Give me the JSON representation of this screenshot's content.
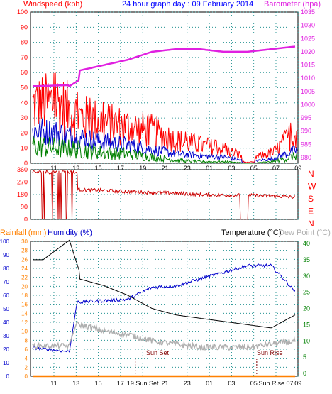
{
  "title": "24 hour graph day : 09 February 2014",
  "wind_panel": {
    "left_label": "Windspeed (kph)",
    "right_label": "Barometer (hpa)",
    "left_ticks": [
      "0",
      "10",
      "20",
      "30",
      "40",
      "50",
      "60",
      "70",
      "80",
      "90",
      "100"
    ],
    "right_ticks": [
      "980",
      "985",
      "990",
      "995",
      "1000",
      "1005",
      "1010",
      "1015",
      "1020",
      "1025",
      "1030",
      "1035"
    ]
  },
  "direction_panel": {
    "left_ticks": [
      "0",
      "90",
      "180",
      "270",
      "360"
    ],
    "compass": [
      "N",
      "W",
      "S",
      "E",
      "N"
    ]
  },
  "lower_panel": {
    "rain_label": "Rainfall (mm)",
    "hum_label": "Humidity (%)",
    "temp_label": "Temperature (°C)",
    "dew_label": "Dew Point (°C)",
    "hum_ticks": [
      "0",
      "10",
      "20",
      "30",
      "40",
      "50",
      "60",
      "70",
      "80",
      "90",
      "100"
    ],
    "rain_ticks": [
      "0",
      "2",
      "4",
      "6",
      "8",
      "10",
      "12",
      "14",
      "16",
      "18",
      "20",
      "22",
      "24",
      "26",
      "28",
      "30"
    ],
    "temp_ticks": [
      "0",
      "5",
      "10",
      "15",
      "20",
      "25",
      "30",
      "35",
      "40"
    ],
    "sunset_label": "Sun Set",
    "sunrise_label": "Sun Rise"
  },
  "hours": [
    "11",
    "13",
    "15",
    "17",
    "19",
    "21",
    "23",
    "01",
    "03",
    "05",
    "07",
    "09"
  ],
  "hours_lower": [
    "11",
    "13",
    "15",
    "17",
    "19 Sun Set",
    "21",
    "23",
    "01",
    "03",
    "05",
    "Sun Rise 07",
    "09"
  ],
  "colors": {
    "gust": "#ff0000",
    "avg": "#0000cc",
    "low": "#008000",
    "barometer": "#e020e0",
    "direction": "#cc0000",
    "humidity": "#0000cc",
    "temperature": "#000000",
    "dewpoint": "#b0b0b0",
    "rainfall": "#ff8000",
    "axis_red": "#ff0000",
    "axis_teal": "#008080",
    "axis_title": "#0000ff"
  },
  "chart_data": [
    {
      "type": "line",
      "title": "24 hour graph day : 09 February 2014",
      "x": [
        "11",
        "13",
        "15",
        "17",
        "19",
        "21",
        "23",
        "01",
        "03",
        "05",
        "07",
        "09"
      ],
      "ylabel": "Windspeed (kph)",
      "y2label": "Barometer (hpa)",
      "ylim": [
        0,
        100
      ],
      "y2lim": [
        980,
        1035
      ],
      "series": [
        {
          "name": "gust",
          "axis": "left",
          "values": [
            38,
            40,
            30,
            27,
            24,
            21,
            15,
            12,
            9,
            3,
            7,
            22
          ]
        },
        {
          "name": "average",
          "axis": "left",
          "values": [
            22,
            20,
            17,
            14,
            12,
            9,
            6,
            5,
            4,
            1,
            3,
            9
          ]
        },
        {
          "name": "low",
          "axis": "left",
          "values": [
            12,
            10,
            9,
            7,
            6,
            4,
            2,
            1,
            1,
            0,
            1,
            5
          ]
        },
        {
          "name": "barometer",
          "axis": "right",
          "values": [
            1007,
            1010,
            1013,
            1015,
            1017,
            1020,
            1021,
            1021,
            1020,
            1020,
            1021,
            1022
          ]
        }
      ]
    },
    {
      "type": "line",
      "x": [
        "11",
        "13",
        "15",
        "17",
        "19",
        "21",
        "23",
        "01",
        "03",
        "05",
        "07",
        "09"
      ],
      "ylabel": "Wind direction",
      "ylim": [
        0,
        360
      ],
      "series": [
        {
          "name": "direction",
          "values": [
            340,
            230,
            215,
            210,
            200,
            195,
            190,
            180,
            175,
            175,
            170,
            160
          ]
        }
      ]
    },
    {
      "type": "line",
      "x": [
        "11",
        "13",
        "15",
        "17",
        "19",
        "21",
        "23",
        "01",
        "03",
        "05",
        "07",
        "09"
      ],
      "ylim": [
        0,
        100
      ],
      "y2lim": [
        0,
        40
      ],
      "series": [
        {
          "name": "Humidity (%)",
          "axis": "humidity",
          "values": [
            21,
            60,
            55,
            56,
            57,
            66,
            67,
            72,
            77,
            82,
            82,
            63
          ]
        },
        {
          "name": "Temperature (°C)",
          "axis": "temperature",
          "values": [
            34,
            31,
            29,
            27,
            24,
            20,
            18,
            17,
            16,
            15,
            14,
            18
          ]
        },
        {
          "name": "Dew Point (°C)",
          "axis": "temperature",
          "values": [
            9,
            16,
            15,
            13,
            12,
            10,
            9,
            8,
            8,
            8,
            9,
            10
          ]
        },
        {
          "name": "Rainfall (mm)",
          "axis": "rainfall",
          "values": [
            0,
            0,
            0,
            0,
            0,
            0,
            0,
            0,
            0,
            0,
            0,
            0
          ]
        }
      ]
    }
  ]
}
